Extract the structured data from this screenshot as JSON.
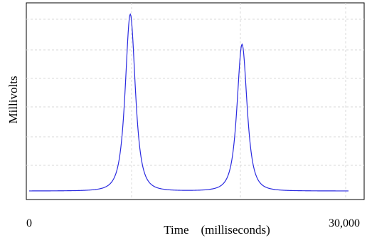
{
  "chart_data": {
    "type": "line",
    "title": "",
    "xlabel": "Time    (milliseconds)",
    "ylabel": "Millivolts",
    "xlim": [
      0,
      30000
    ],
    "grid": true,
    "x_tick_labels": [
      "0",
      "30,000"
    ],
    "series": [
      {
        "color": "#2a2ae0",
        "peaks": [
          {
            "center_ms": 9500,
            "height": 1.0,
            "width_ms": 1500
          },
          {
            "center_ms": 20000,
            "height": 0.83,
            "width_ms": 1500
          }
        ],
        "baseline": 0.0
      }
    ]
  }
}
